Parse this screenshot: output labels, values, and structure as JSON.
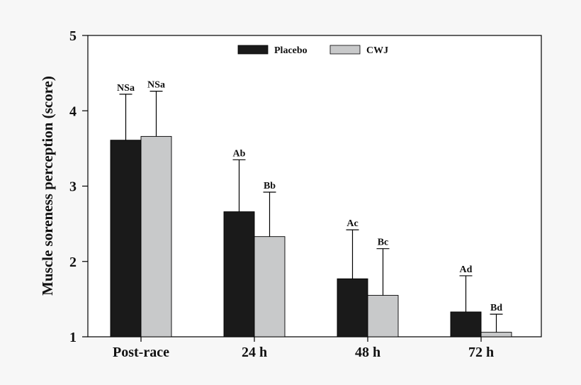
{
  "chart_data": {
    "type": "bar",
    "title": "",
    "xlabel": "",
    "ylabel": "Muscle soreness perception (score)",
    "ylim": [
      1,
      5
    ],
    "yticks": [
      "1",
      "2",
      "3",
      "4",
      "5"
    ],
    "categories": [
      "Post-race",
      "24 h",
      "48 h",
      "72 h"
    ],
    "legend_position": "top-center",
    "grid": false,
    "series": [
      {
        "name": "Placebo",
        "color": "#1a1a1a",
        "values": [
          3.61,
          2.66,
          1.77,
          1.33
        ],
        "error_upper": [
          0.61,
          0.69,
          0.65,
          0.48
        ],
        "labels": [
          "NSa",
          "Ab",
          "Ac",
          "Ad"
        ]
      },
      {
        "name": "CWJ",
        "color": "#c8c9ca",
        "values": [
          3.66,
          2.33,
          1.55,
          1.06
        ],
        "error_upper": [
          0.6,
          0.59,
          0.62,
          0.24
        ],
        "labels": [
          "NSa",
          "Bb",
          "Bc",
          "Bd"
        ]
      }
    ]
  }
}
